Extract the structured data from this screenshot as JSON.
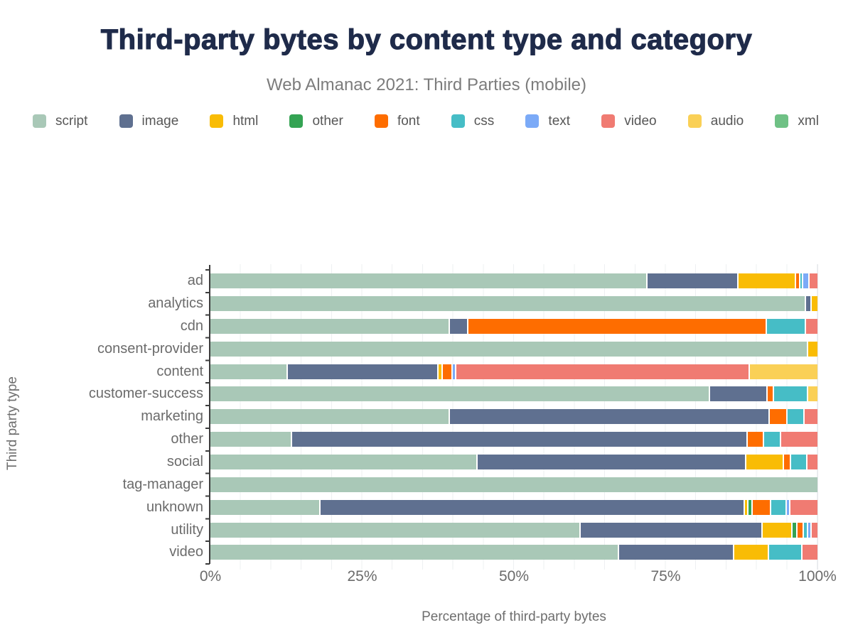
{
  "header": {
    "title": "Third-party bytes by content type and category",
    "subtitle": "Web Almanac 2021: Third Parties (mobile)"
  },
  "chart_data": {
    "type": "bar",
    "stacked": true,
    "orientation": "horizontal",
    "title": "Third-party bytes by content type and category",
    "subtitle": "Web Almanac 2021: Third Parties (mobile)",
    "xlabel": "Percentage of third-party bytes",
    "ylabel": "Third party type",
    "xlim": [
      0,
      100
    ],
    "grid": "minor vertical lines every 5%",
    "legend_position": "top",
    "legend": [
      {
        "label": "script",
        "color": "#a9c8b7"
      },
      {
        "label": "image",
        "color": "#5f7090"
      },
      {
        "label": "html",
        "color": "#f9bc05"
      },
      {
        "label": "other",
        "color": "#34a353"
      },
      {
        "label": "font",
        "color": "#fe6d00"
      },
      {
        "label": "css",
        "color": "#46bdc6"
      },
      {
        "label": "text",
        "color": "#7baaf7"
      },
      {
        "label": "video",
        "color": "#f07b72"
      },
      {
        "label": "audio",
        "color": "#fad056"
      },
      {
        "label": "xml",
        "color": "#6fc185"
      }
    ],
    "x_ticks": [
      {
        "label": "0%",
        "pct": 0
      },
      {
        "label": "25%",
        "pct": 25
      },
      {
        "label": "50%",
        "pct": 50
      },
      {
        "label": "75%",
        "pct": 75
      },
      {
        "label": "100%",
        "pct": 100
      }
    ],
    "categories": [
      "ad",
      "analytics",
      "cdn",
      "consent-provider",
      "content",
      "customer-success",
      "marketing",
      "other",
      "social",
      "tag-manager",
      "unknown",
      "utility",
      "video"
    ],
    "rows": [
      {
        "category": "ad",
        "segments": [
          {
            "type": "script",
            "pct": 72.8
          },
          {
            "type": "image",
            "pct": 15.0
          },
          {
            "type": "html",
            "pct": 9.4
          },
          {
            "type": "font",
            "pct": 0.4
          },
          {
            "type": "css",
            "pct": 0.3
          },
          {
            "type": "text",
            "pct": 0.8
          },
          {
            "type": "video",
            "pct": 1.3
          }
        ]
      },
      {
        "category": "analytics",
        "segments": [
          {
            "type": "script",
            "pct": 98.3
          },
          {
            "type": "image",
            "pct": 0.7
          },
          {
            "type": "html",
            "pct": 1.0
          }
        ]
      },
      {
        "category": "cdn",
        "segments": [
          {
            "type": "script",
            "pct": 39.6
          },
          {
            "type": "image",
            "pct": 2.8
          },
          {
            "type": "font",
            "pct": 49.4
          },
          {
            "type": "css",
            "pct": 6.3
          },
          {
            "type": "video",
            "pct": 1.9
          }
        ]
      },
      {
        "category": "consent-provider",
        "segments": [
          {
            "type": "script",
            "pct": 98.5
          },
          {
            "type": "html",
            "pct": 1.5
          }
        ]
      },
      {
        "category": "content",
        "segments": [
          {
            "type": "script",
            "pct": 12.7
          },
          {
            "type": "image",
            "pct": 24.9
          },
          {
            "type": "html",
            "pct": 0.5
          },
          {
            "type": "font",
            "pct": 1.4
          },
          {
            "type": "text",
            "pct": 0.4
          },
          {
            "type": "video",
            "pct": 48.8
          },
          {
            "type": "audio",
            "pct": 11.3
          }
        ]
      },
      {
        "category": "customer-success",
        "segments": [
          {
            "type": "script",
            "pct": 82.9
          },
          {
            "type": "image",
            "pct": 9.3
          },
          {
            "type": "font",
            "pct": 0.8
          },
          {
            "type": "css",
            "pct": 5.5
          },
          {
            "type": "audio",
            "pct": 1.5
          }
        ]
      },
      {
        "category": "marketing",
        "segments": [
          {
            "type": "script",
            "pct": 39.6
          },
          {
            "type": "image",
            "pct": 52.9
          },
          {
            "type": "font",
            "pct": 2.8
          },
          {
            "type": "css",
            "pct": 2.6
          },
          {
            "type": "video",
            "pct": 2.1
          }
        ]
      },
      {
        "category": "other",
        "segments": [
          {
            "type": "script",
            "pct": 13.3
          },
          {
            "type": "image",
            "pct": 75.6
          },
          {
            "type": "font",
            "pct": 2.5
          },
          {
            "type": "css",
            "pct": 2.6
          },
          {
            "type": "video",
            "pct": 6.0
          }
        ]
      },
      {
        "category": "social",
        "segments": [
          {
            "type": "script",
            "pct": 44.3
          },
          {
            "type": "image",
            "pct": 44.6
          },
          {
            "type": "html",
            "pct": 6.0
          },
          {
            "type": "font",
            "pct": 1.0
          },
          {
            "type": "css",
            "pct": 2.4
          },
          {
            "type": "video",
            "pct": 1.7
          }
        ]
      },
      {
        "category": "tag-manager",
        "segments": [
          {
            "type": "script",
            "pct": 100
          }
        ]
      },
      {
        "category": "unknown",
        "segments": [
          {
            "type": "script",
            "pct": 18.2
          },
          {
            "type": "image",
            "pct": 70.8
          },
          {
            "type": "html",
            "pct": 0.4
          },
          {
            "type": "other",
            "pct": 0.5
          },
          {
            "type": "font",
            "pct": 2.8
          },
          {
            "type": "css",
            "pct": 2.4
          },
          {
            "type": "text",
            "pct": 0.4
          },
          {
            "type": "video",
            "pct": 4.5
          }
        ]
      },
      {
        "category": "utility",
        "segments": [
          {
            "type": "script",
            "pct": 61.8
          },
          {
            "type": "image",
            "pct": 30.2
          },
          {
            "type": "html",
            "pct": 4.8
          },
          {
            "type": "other",
            "pct": 0.6
          },
          {
            "type": "font",
            "pct": 0.8
          },
          {
            "type": "css",
            "pct": 0.5
          },
          {
            "type": "text",
            "pct": 0.4
          },
          {
            "type": "video",
            "pct": 0.9
          }
        ]
      },
      {
        "category": "video",
        "segments": [
          {
            "type": "script",
            "pct": 67.7
          },
          {
            "type": "image",
            "pct": 19.0
          },
          {
            "type": "html",
            "pct": 5.5
          },
          {
            "type": "css",
            "pct": 5.3
          },
          {
            "type": "video",
            "pct": 2.5
          }
        ]
      }
    ]
  }
}
